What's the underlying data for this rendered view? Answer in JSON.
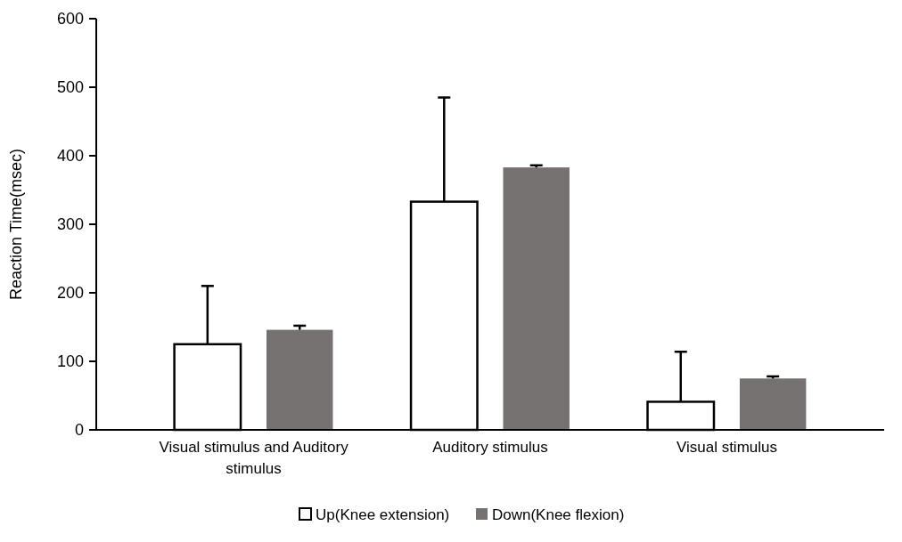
{
  "chart_data": {
    "type": "bar",
    "ylabel": "Reaction Time(msec)",
    "categories": [
      "Visual stimulus and Auditory stimulus",
      "Auditory stimulus",
      "Visual stimulus"
    ],
    "series": [
      {
        "name": "Up(Knee extension)",
        "color": "#ffffff",
        "values": [
          125,
          333,
          41
        ],
        "errors": [
          [
            125,
            210
          ],
          [
            333,
            485
          ],
          [
            41,
            114
          ]
        ]
      },
      {
        "name": "Down(Knee flexion)",
        "color": "#767171",
        "values": [
          146,
          383,
          75
        ],
        "errors": [
          [
            146,
            152
          ],
          [
            383,
            386
          ],
          [
            75,
            78
          ]
        ]
      }
    ],
    "ylim": [
      0,
      600
    ],
    "yticks": [
      0,
      100,
      200,
      300,
      400,
      500,
      600
    ],
    "legend": "bottom"
  }
}
